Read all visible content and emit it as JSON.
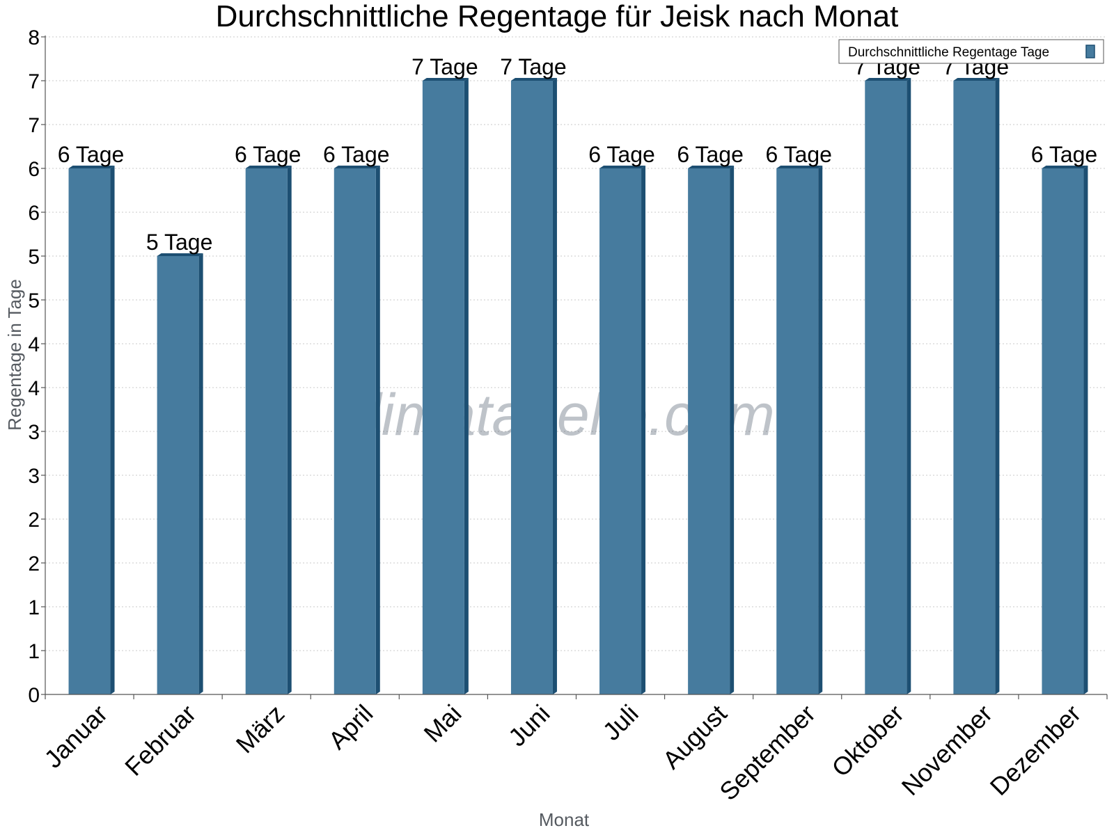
{
  "chart_data": {
    "type": "bar",
    "title": "Durchschnittliche Regentage für Jeisk nach Monat",
    "xlabel": "Monat",
    "ylabel": "Regentage in Tage",
    "categories": [
      "Januar",
      "Februar",
      "März",
      "April",
      "Mai",
      "Juni",
      "Juli",
      "August",
      "September",
      "Oktober",
      "November",
      "Dezember"
    ],
    "series": [
      {
        "name": "Durchschnittliche Regentage Tage",
        "values": [
          6,
          5,
          6,
          6,
          7,
          7,
          6,
          6,
          6,
          7,
          7,
          6
        ],
        "data_labels": [
          "6 Tage",
          "5 Tage",
          "6 Tage",
          "6 Tage",
          "7 Tage",
          "7 Tage",
          "6 Tage",
          "6 Tage",
          "6 Tage",
          "7 Tage",
          "7 Tage",
          "6 Tage"
        ],
        "color": "#467b9e",
        "side_color": "#1d4f72"
      }
    ],
    "ylim": [
      0,
      7.5
    ],
    "yticks": [
      0,
      0.5,
      1,
      1.5,
      2,
      2.5,
      3,
      3.5,
      4,
      4.5,
      5,
      5.5,
      6,
      6.5,
      7,
      7.5
    ],
    "ytick_labels": [
      "0",
      "1",
      "1",
      "2",
      "2",
      "3",
      "3",
      "4",
      "4",
      "5",
      "5",
      "6",
      "6",
      "7",
      "7",
      "8"
    ],
    "grid": true,
    "legend_position": "top-right",
    "watermark": "klimatabelle.com"
  }
}
